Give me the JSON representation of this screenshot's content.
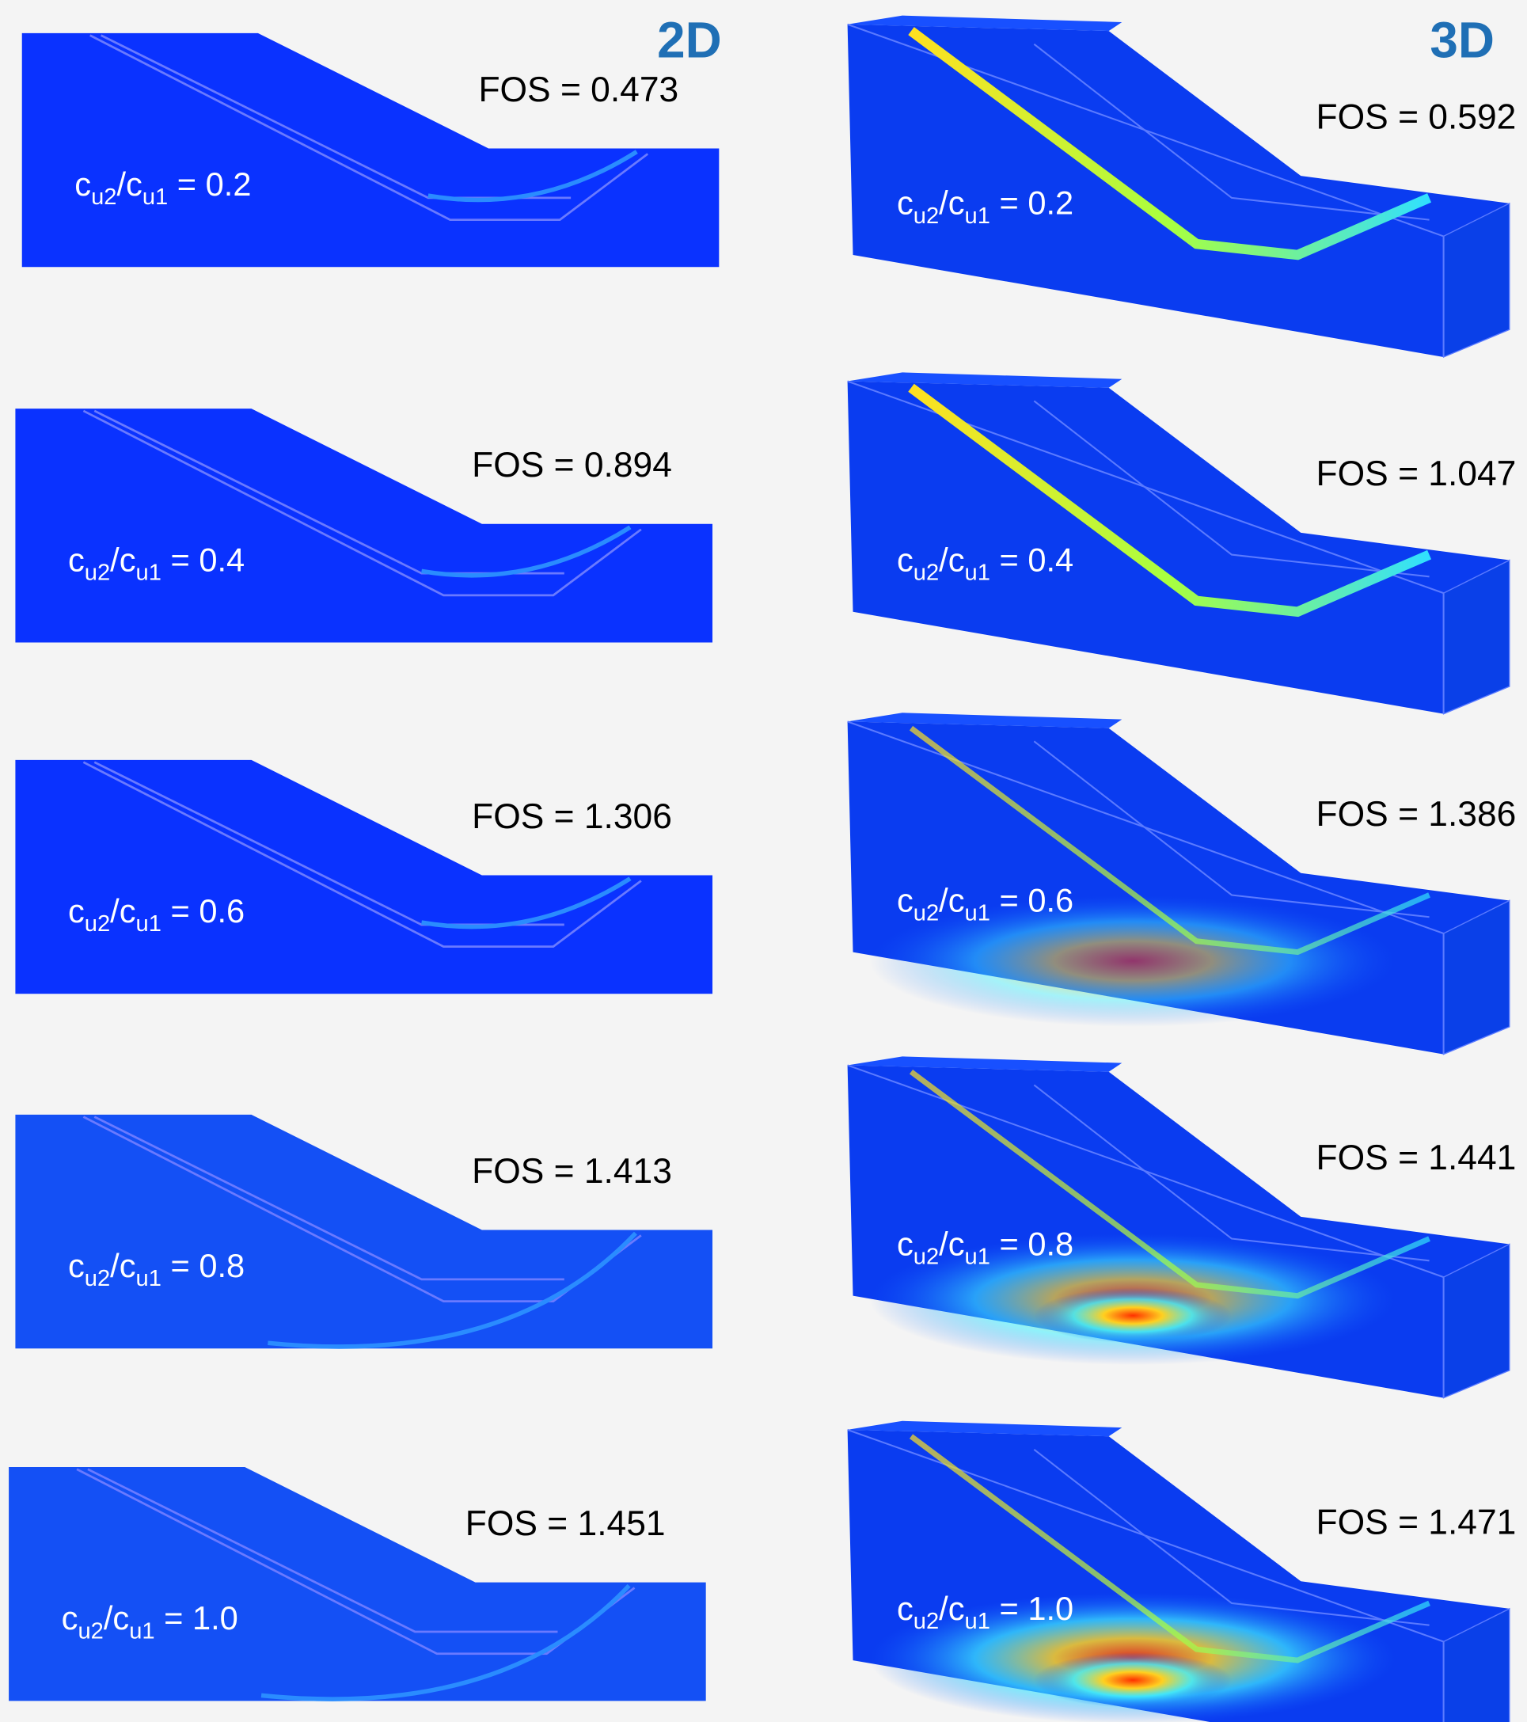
{
  "headers": {
    "left": "2D",
    "right": "3D"
  },
  "panels_2d": [
    {
      "ratio": [
        "c",
        "u2",
        "/c",
        "u1",
        " = 0.2"
      ],
      "fos": "FOS = 0.473"
    },
    {
      "ratio": [
        "c",
        "u2",
        "/c",
        "u1",
        " = 0.4"
      ],
      "fos": "FOS = 0.894"
    },
    {
      "ratio": [
        "c",
        "u2",
        "/c",
        "u1",
        " = 0.6"
      ],
      "fos": "FOS = 1.306"
    },
    {
      "ratio": [
        "c",
        "u2",
        "/c",
        "u1",
        " = 0.8"
      ],
      "fos": "FOS = 1.413"
    },
    {
      "ratio": [
        "c",
        "u2",
        "/c",
        "u1",
        " = 1.0"
      ],
      "fos": "FOS = 1.451"
    }
  ],
  "panels_3d": [
    {
      "ratio": [
        "c",
        "u2",
        "/c",
        "u1",
        " = 0.2"
      ],
      "fos": "FOS = 0.592"
    },
    {
      "ratio": [
        "c",
        "u2",
        "/c",
        "u1",
        " = 0.4"
      ],
      "fos": "FOS = 1.047"
    },
    {
      "ratio": [
        "c",
        "u2",
        "/c",
        "u1",
        " = 0.6"
      ],
      "fos": "FOS = 1.386"
    },
    {
      "ratio": [
        "c",
        "u2",
        "/c",
        "u1",
        " = 0.8"
      ],
      "fos": "FOS = 1.441"
    },
    {
      "ratio": [
        "c",
        "u2",
        "/c",
        "u1",
        " = 1.0"
      ],
      "fos": "FOS = 1.471"
    }
  ]
}
